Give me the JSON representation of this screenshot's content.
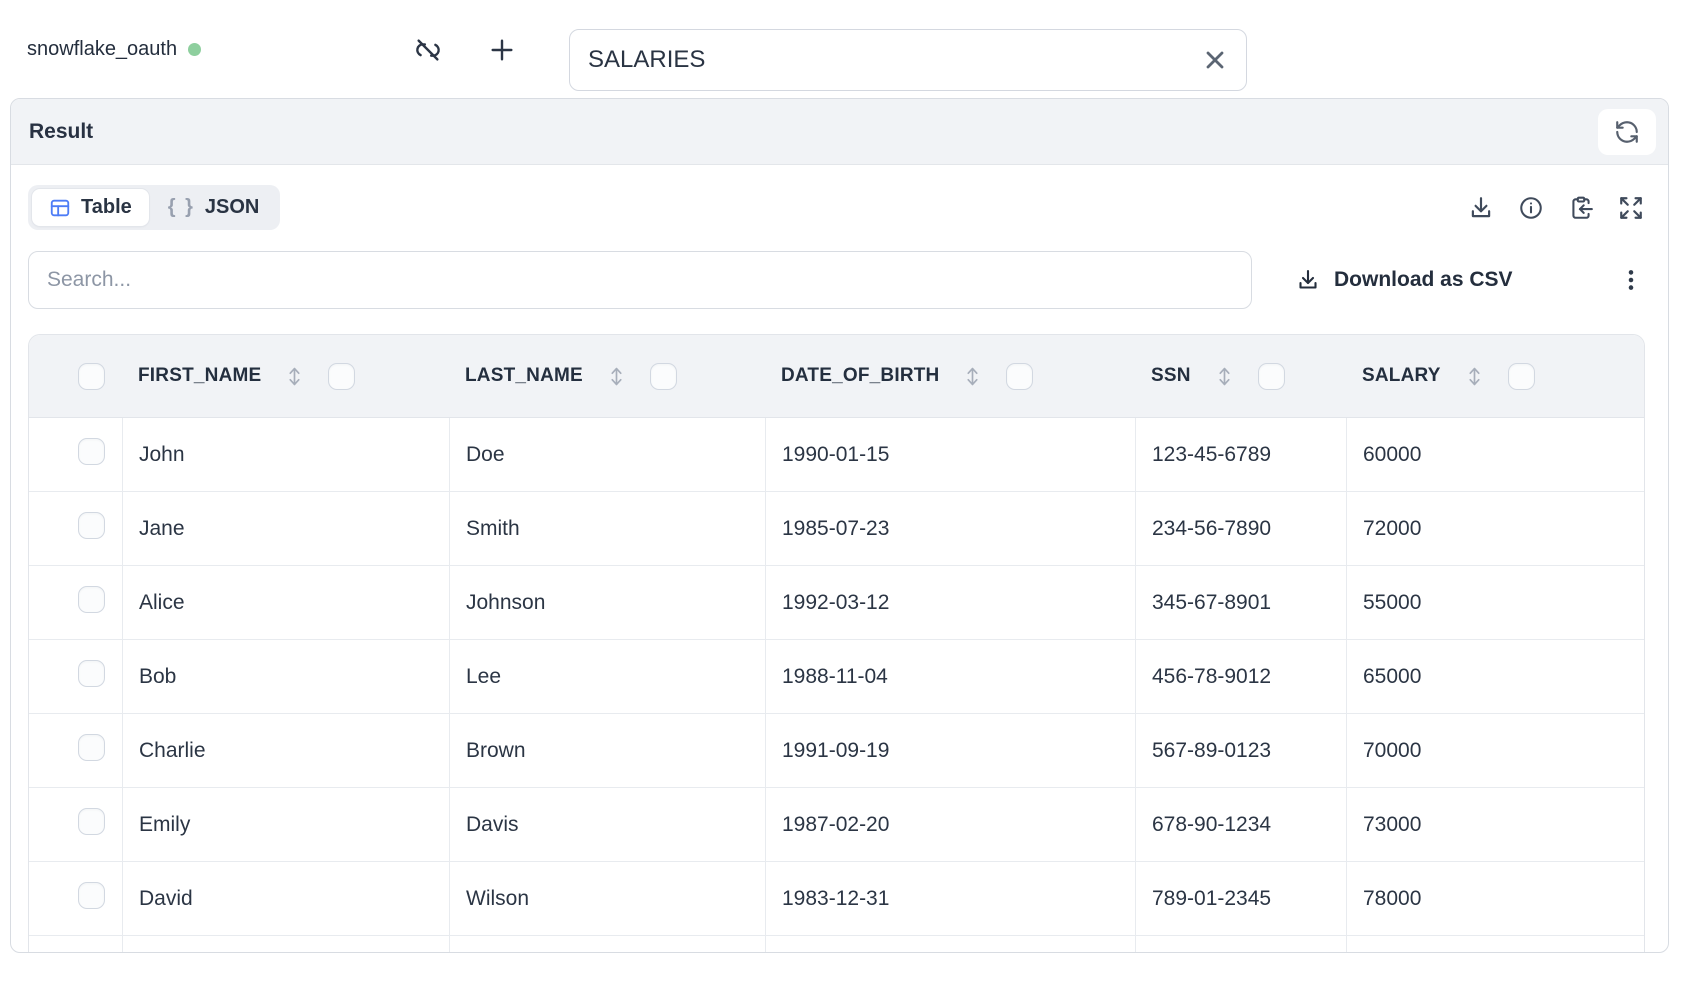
{
  "topbar": {
    "connection_name": "snowflake_oauth",
    "table_name_input": {
      "value": "SALARIES"
    }
  },
  "result": {
    "title": "Result",
    "view_tabs": [
      {
        "label": "Table",
        "active": true
      },
      {
        "label": "JSON",
        "active": false
      }
    ],
    "json_tab_glyph": "{ }",
    "search": {
      "placeholder": "Search...",
      "value": ""
    },
    "download_csv_label": "Download as CSV"
  },
  "chart_data": {
    "type": "table",
    "columns": [
      "FIRST_NAME",
      "LAST_NAME",
      "DATE_OF_BIRTH",
      "SSN",
      "SALARY"
    ],
    "rows": [
      [
        "John",
        "Doe",
        "1990-01-15",
        "123-45-6789",
        "60000"
      ],
      [
        "Jane",
        "Smith",
        "1985-07-23",
        "234-56-7890",
        "72000"
      ],
      [
        "Alice",
        "Johnson",
        "1992-03-12",
        "345-67-8901",
        "55000"
      ],
      [
        "Bob",
        "Lee",
        "1988-11-04",
        "456-78-9012",
        "65000"
      ],
      [
        "Charlie",
        "Brown",
        "1991-09-19",
        "567-89-0123",
        "70000"
      ],
      [
        "Emily",
        "Davis",
        "1987-02-20",
        "678-90-1234",
        "73000"
      ],
      [
        "David",
        "Wilson",
        "1983-12-31",
        "789-01-2345",
        "78000"
      ]
    ]
  },
  "colors": {
    "accent_blue": "#4d7cf6",
    "status_green": "#8ecf9e",
    "header_bg": "#f1f3f6",
    "border": "#d8dce2",
    "text_dark": "#2a3443",
    "icon_gray": "#3f4a5b"
  }
}
